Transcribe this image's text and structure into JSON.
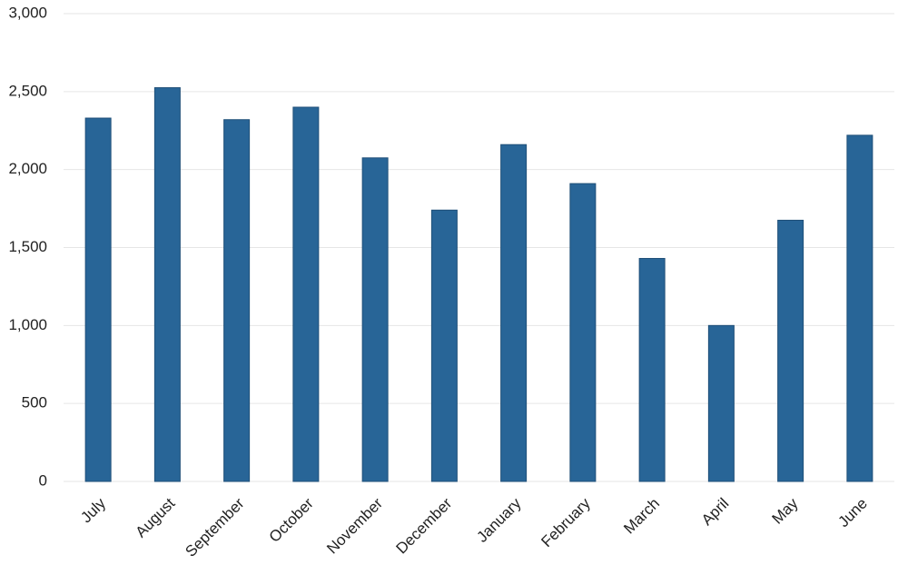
{
  "chart_data": {
    "type": "bar",
    "categories": [
      "July",
      "August",
      "September",
      "October",
      "November",
      "December",
      "January",
      "February",
      "March",
      "April",
      "May",
      "June"
    ],
    "values": [
      2330,
      2525,
      2320,
      2400,
      2075,
      1740,
      2160,
      1910,
      1430,
      1000,
      1675,
      2220
    ],
    "color": "#286597",
    "ylim": [
      0,
      3000
    ],
    "yticks": [
      0,
      500,
      {
        "value": 1000,
        "label": "1,000"
      },
      {
        "value": 1500,
        "label": "1,500"
      },
      {
        "value": 2000,
        "label": "2,000"
      },
      {
        "value": 2500,
        "label": "2,500"
      },
      {
        "value": 3000,
        "label": "3,000"
      }
    ],
    "grid": true
  }
}
